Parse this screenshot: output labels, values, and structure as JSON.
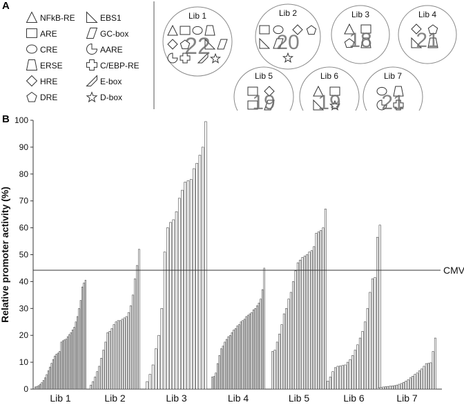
{
  "panel_a": {
    "letter": "A",
    "legend": [
      {
        "icon": "triangle-icon",
        "label": "NFkB-RE"
      },
      {
        "icon": "square-icon",
        "label": "ARE"
      },
      {
        "icon": "circle-icon",
        "label": "CRE"
      },
      {
        "icon": "trapezoid-icon",
        "label": "ERSE"
      },
      {
        "icon": "diamond-icon",
        "label": "HRE"
      },
      {
        "icon": "pentagon-icon",
        "label": "DRE"
      },
      {
        "icon": "right-triangle-icon",
        "label": "EBS1"
      },
      {
        "icon": "parallelogram-icon",
        "label": "GC-box"
      },
      {
        "icon": "pacman-icon",
        "label": "AARE"
      },
      {
        "icon": "cross-icon",
        "label": "C/EBP-RE"
      },
      {
        "icon": "slash-quad-icon",
        "label": "E-box"
      },
      {
        "icon": "star-icon",
        "label": "D-box"
      }
    ],
    "libraries": [
      {
        "name": "Lib 1",
        "count": "22",
        "icons": [
          "triangle-icon",
          "square-icon",
          "circle-icon",
          "trapezoid-icon",
          "diamond-icon",
          "pentagon-icon",
          "right-triangle-icon",
          "parallelogram-icon",
          "pacman-icon",
          "cross-icon",
          "slash-quad-icon",
          "star-icon"
        ]
      },
      {
        "name": "Lib 2",
        "count": "20",
        "icons": [
          "square-icon",
          "circle-icon",
          "diamond-icon",
          "pentagon-icon",
          "right-triangle-icon",
          "parallelogram-icon",
          "star-icon"
        ]
      },
      {
        "name": "Lib 3",
        "count": "18",
        "icons": [
          "triangle-icon",
          "square-icon",
          "pentagon-icon",
          "trapezoid-icon"
        ]
      },
      {
        "name": "Lib 4",
        "count": "21",
        "icons": [
          "diamond-icon",
          "pentagon-icon",
          "right-triangle-icon",
          "trapezoid-icon"
        ]
      },
      {
        "name": "Lib 5",
        "count": "19",
        "icons": [
          "square-icon",
          "diamond-icon",
          "square-icon",
          "parallelogram-icon"
        ]
      },
      {
        "name": "Lib 6",
        "count": "19",
        "icons": [
          "triangle-icon",
          "square-icon",
          "right-triangle-icon",
          "star-icon"
        ]
      },
      {
        "name": "Lib 7",
        "count": "21",
        "icons": [
          "circle-icon",
          "trapezoid-icon",
          "pacman-icon",
          "cross-icon"
        ]
      }
    ]
  },
  "panel_b": {
    "letter": "B"
  },
  "chart_data": {
    "type": "bar",
    "ylabel": "Relative promoter activity (%)",
    "ylim": [
      0,
      100
    ],
    "yticks": [
      "0",
      "10",
      "20",
      "30",
      "40",
      "50",
      "60",
      "70",
      "80",
      "90",
      "100"
    ],
    "grid": false,
    "reference_line": {
      "label": "CMV",
      "value": 44.2
    },
    "groups": [
      {
        "name": "Lib 1",
        "values": [
          0.8,
          1.0,
          1.3,
          1.8,
          2.4,
          3.2,
          4.2,
          5.4,
          6.8,
          8.2,
          9.6,
          11.0,
          12.3,
          13.0,
          13.4,
          14.0,
          17.5,
          18.0,
          18.3,
          18.6,
          19.5,
          20.3,
          21.0,
          22.0,
          23.0,
          25.0,
          27.0,
          30.0,
          33.0,
          38.0,
          39.5,
          40.5
        ]
      },
      {
        "name": "Lib 2",
        "values": [
          1.5,
          2.8,
          4.5,
          6.5,
          8.5,
          11.5,
          14.5,
          17.5,
          21.0,
          21.5,
          22.5,
          24.0,
          25.0,
          25.5,
          25.5,
          26.0,
          26.5,
          27.0,
          28.5,
          31.0,
          35.0,
          41.0,
          46.0,
          52.0
        ]
      },
      {
        "name": "Lib 3",
        "values": [
          2.8,
          5.5,
          9.0,
          15.0,
          20.0,
          30.0,
          51.0,
          60.0,
          62.0,
          63.0,
          66.0,
          71.0,
          74.0,
          77.0,
          77.5,
          78.0,
          82.0,
          84.0,
          87.0,
          90.0,
          99.5
        ]
      },
      {
        "name": "Lib 4",
        "values": [
          4.5,
          4.7,
          6.0,
          9.5,
          12.5,
          15.0,
          16.0,
          17.5,
          18.5,
          19.5,
          20.0,
          21.0,
          22.0,
          22.5,
          23.5,
          24.0,
          25.0,
          25.5,
          26.0,
          27.0,
          27.5,
          28.0,
          28.5,
          29.5,
          30.0,
          31.0,
          32.0,
          33.5,
          37.0,
          45.0
        ]
      },
      {
        "name": "Lib 5",
        "values": [
          14.0,
          14.5,
          17.5,
          20.5,
          24.0,
          28.0,
          30.0,
          33.5,
          36.0,
          40.0,
          44.0,
          47.0,
          48.0,
          49.0,
          49.5,
          50.0,
          51.0,
          51.5,
          53.0,
          58.0,
          58.5,
          59.0,
          60.0,
          67.0
        ]
      },
      {
        "name": "Lib 6",
        "values": [
          3.0,
          4.5,
          6.5,
          8.0,
          8.5,
          8.6,
          8.8,
          9.0,
          10.0,
          11.0,
          12.5,
          14.5,
          16.5,
          19.0,
          21.5,
          25.0,
          30.0,
          36.0,
          41.0,
          41.5,
          56.5,
          61.0
        ]
      },
      {
        "name": "Lib 7",
        "values": [
          0.5,
          0.6,
          0.8,
          0.9,
          1.0,
          1.1,
          1.2,
          1.3,
          1.5,
          1.8,
          2.1,
          2.5,
          3.0,
          3.5,
          4.2,
          4.8,
          5.5,
          6.0,
          6.8,
          7.5,
          8.5,
          9.5,
          9.6,
          9.8,
          14.0,
          19.0
        ]
      }
    ]
  }
}
